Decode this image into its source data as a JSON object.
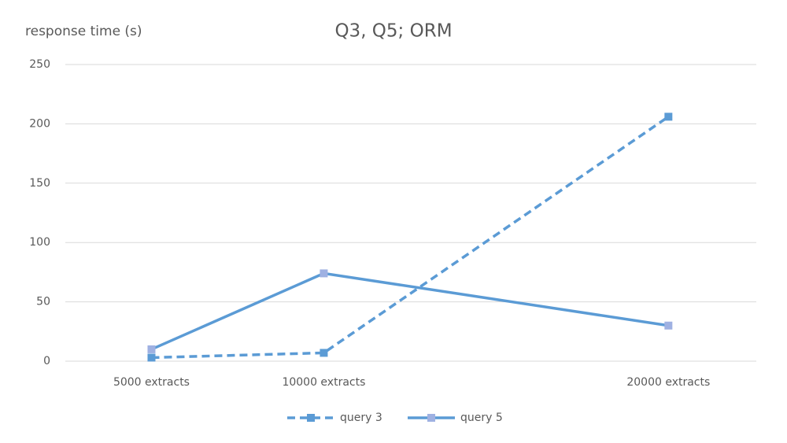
{
  "chart_data": {
    "type": "line",
    "title": "Q3, Q5;  ORM",
    "y_label": "response time (s)",
    "x": [
      5000,
      10000,
      20000
    ],
    "xlim": [
      2500,
      22550
    ],
    "xticks": [
      {
        "value": 5000,
        "label": "5000 extracts"
      },
      {
        "value": 10000,
        "label": "10000 extracts"
      },
      {
        "value": 20000,
        "label": "20000 extracts"
      }
    ],
    "ylim": [
      0,
      250
    ],
    "yticks": [
      0,
      50,
      100,
      150,
      200,
      250
    ],
    "grid": true,
    "legend": "bottom",
    "series": [
      {
        "name": "query 3",
        "color": "#5b9bd5",
        "marker_color": "#5b9bd5",
        "dashed": true,
        "values": [
          3,
          7,
          206
        ]
      },
      {
        "name": "query 5",
        "color": "#5b9bd5",
        "marker_color": "#9fb1e2",
        "dashed": false,
        "values": [
          10,
          74,
          30
        ]
      }
    ]
  }
}
